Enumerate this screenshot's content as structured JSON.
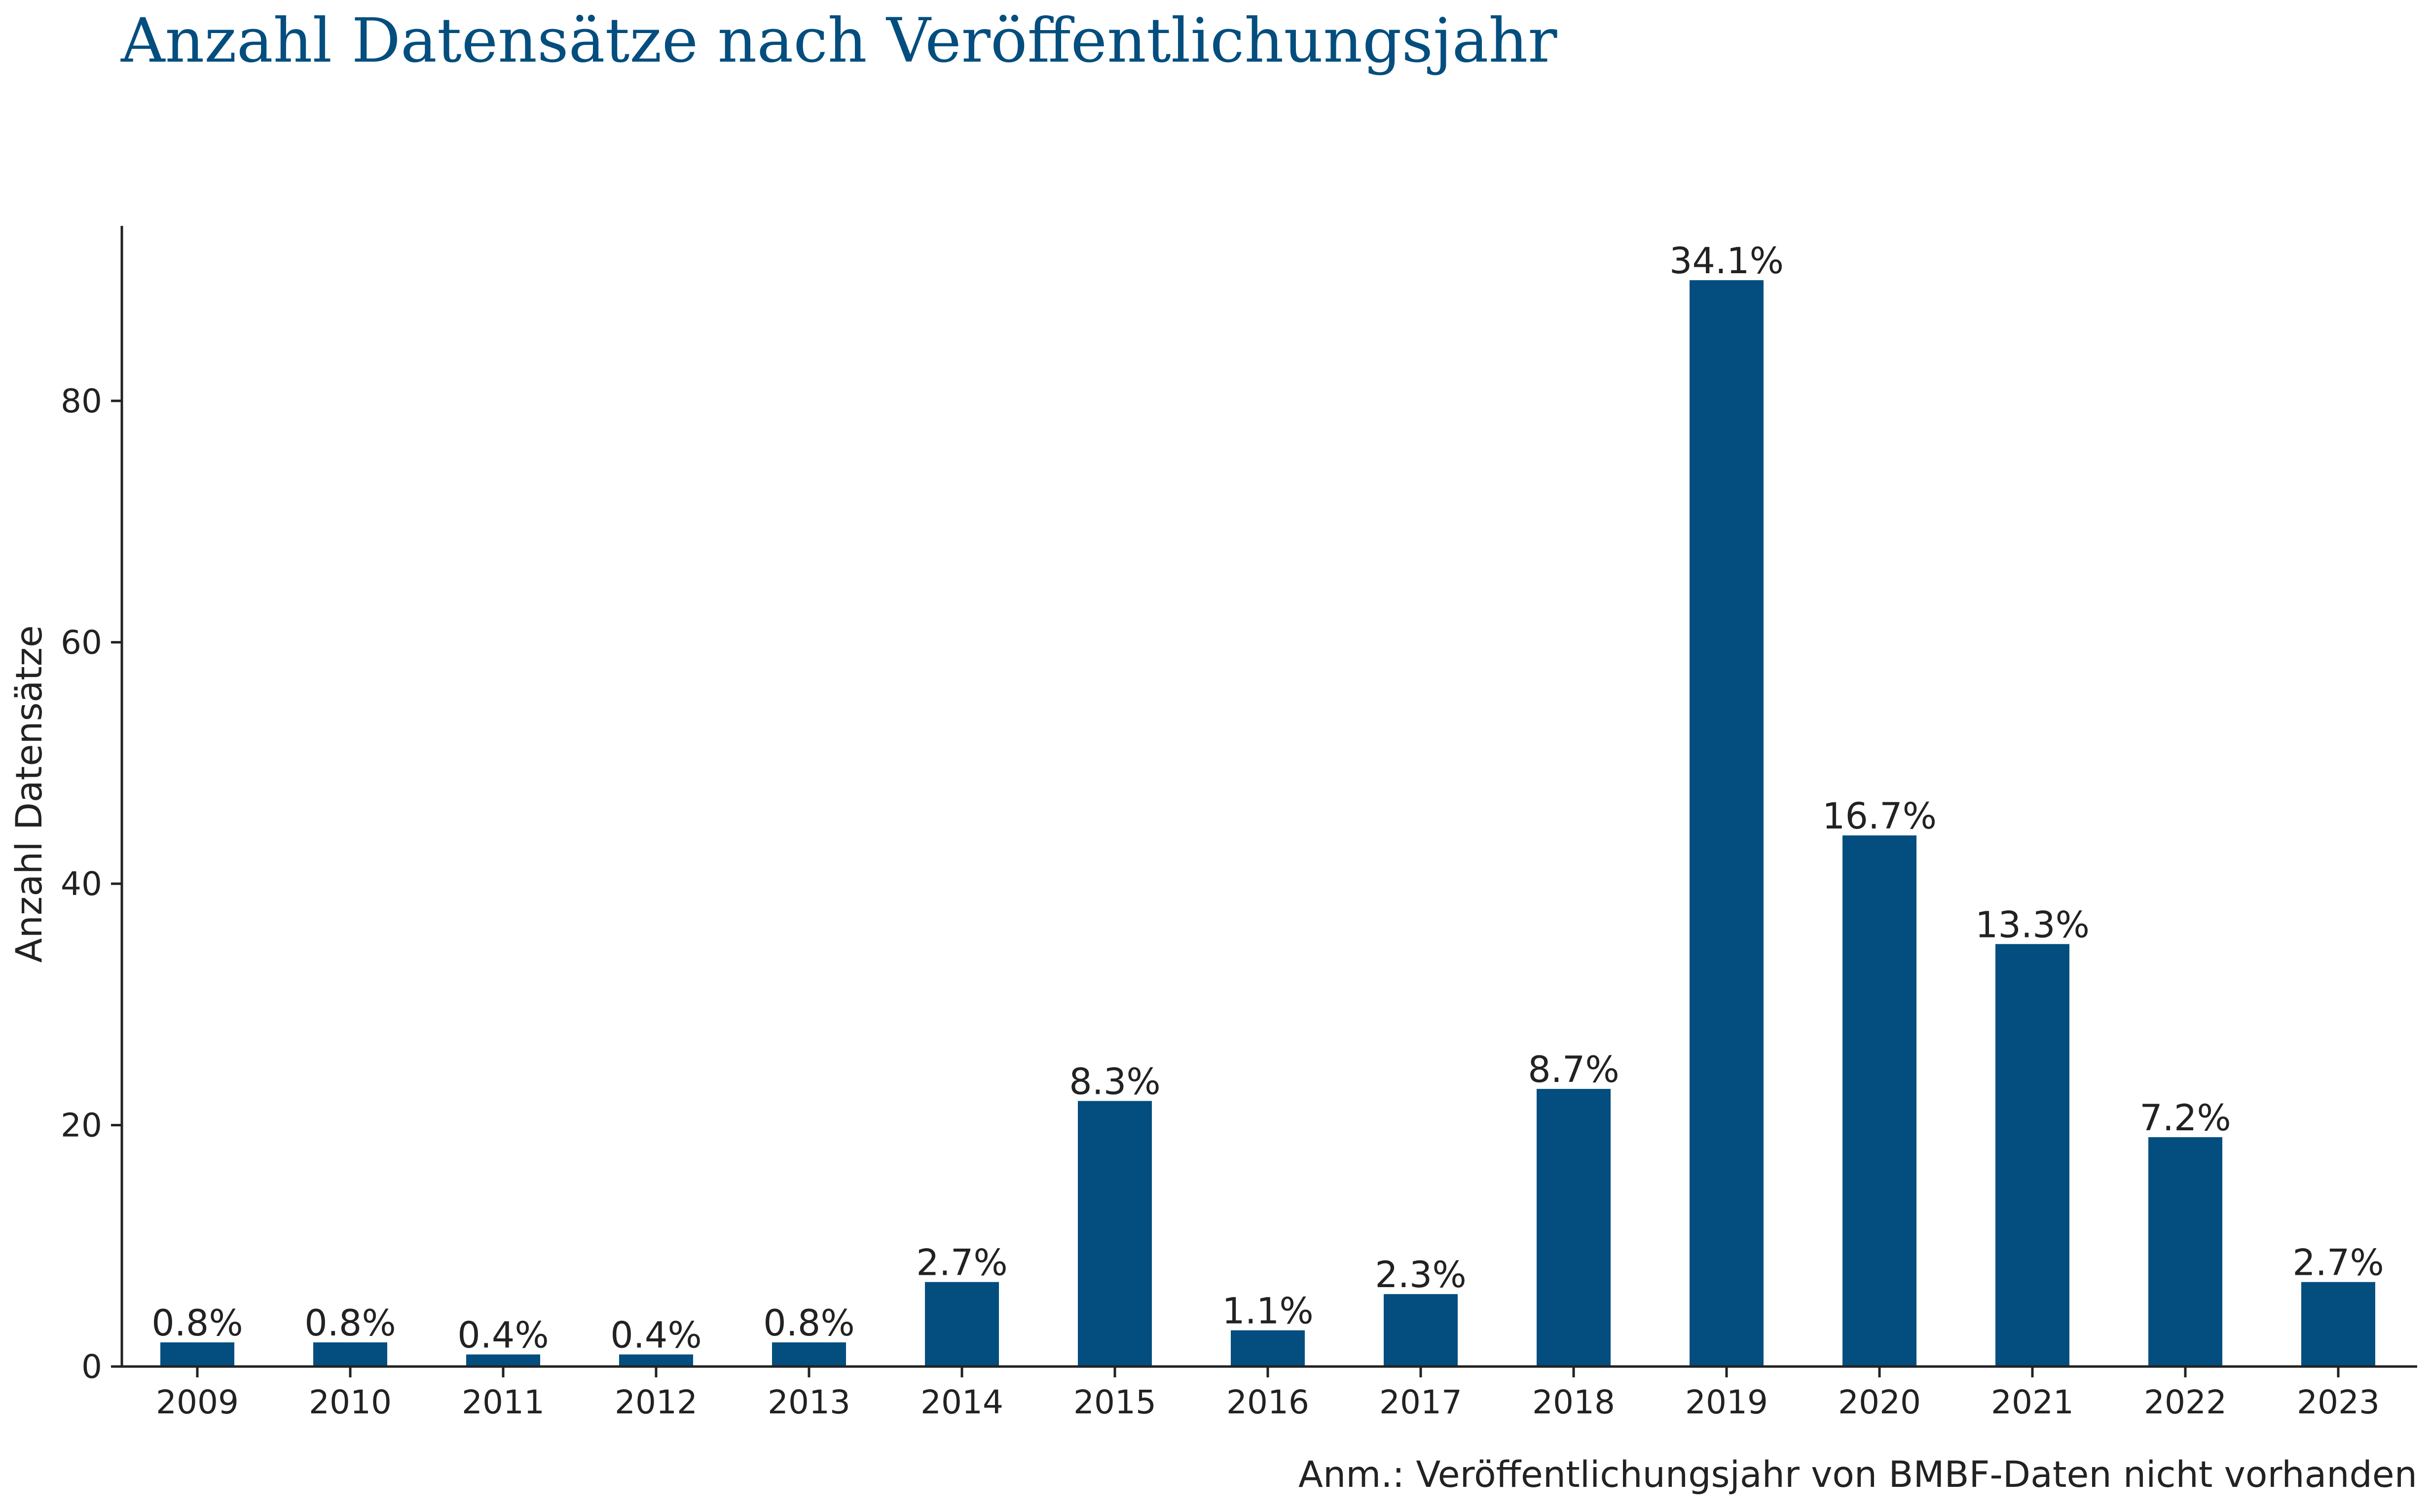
{
  "chart_data": {
    "type": "bar",
    "title": "Anzahl Datensätze nach Veröffentlichungsjahr",
    "xlabel": "",
    "ylabel": "Anzahl Datensätze",
    "categories": [
      "2009",
      "2010",
      "2011",
      "2012",
      "2013",
      "2014",
      "2015",
      "2016",
      "2017",
      "2018",
      "2019",
      "2020",
      "2021",
      "2022",
      "2023"
    ],
    "values": [
      2,
      2,
      1,
      1,
      2,
      7,
      22,
      3,
      6,
      23,
      90,
      44,
      35,
      19,
      7
    ],
    "data_labels": [
      "0.8%",
      "0.8%",
      "0.4%",
      "0.4%",
      "0.8%",
      "2.7%",
      "8.3%",
      "1.1%",
      "2.3%",
      "8.7%",
      "34.1%",
      "16.7%",
      "13.3%",
      "7.2%",
      "2.7%"
    ],
    "ylim": [
      0,
      94.5
    ],
    "yticks": [
      0,
      20,
      40,
      60,
      80
    ],
    "grid": false,
    "legend": "none",
    "bar_color": "#034e7e",
    "title_color": "#034e7e",
    "annotation": "Anm.: Veröffentlichungsjahr von BMBF-Daten nicht vorhanden"
  }
}
